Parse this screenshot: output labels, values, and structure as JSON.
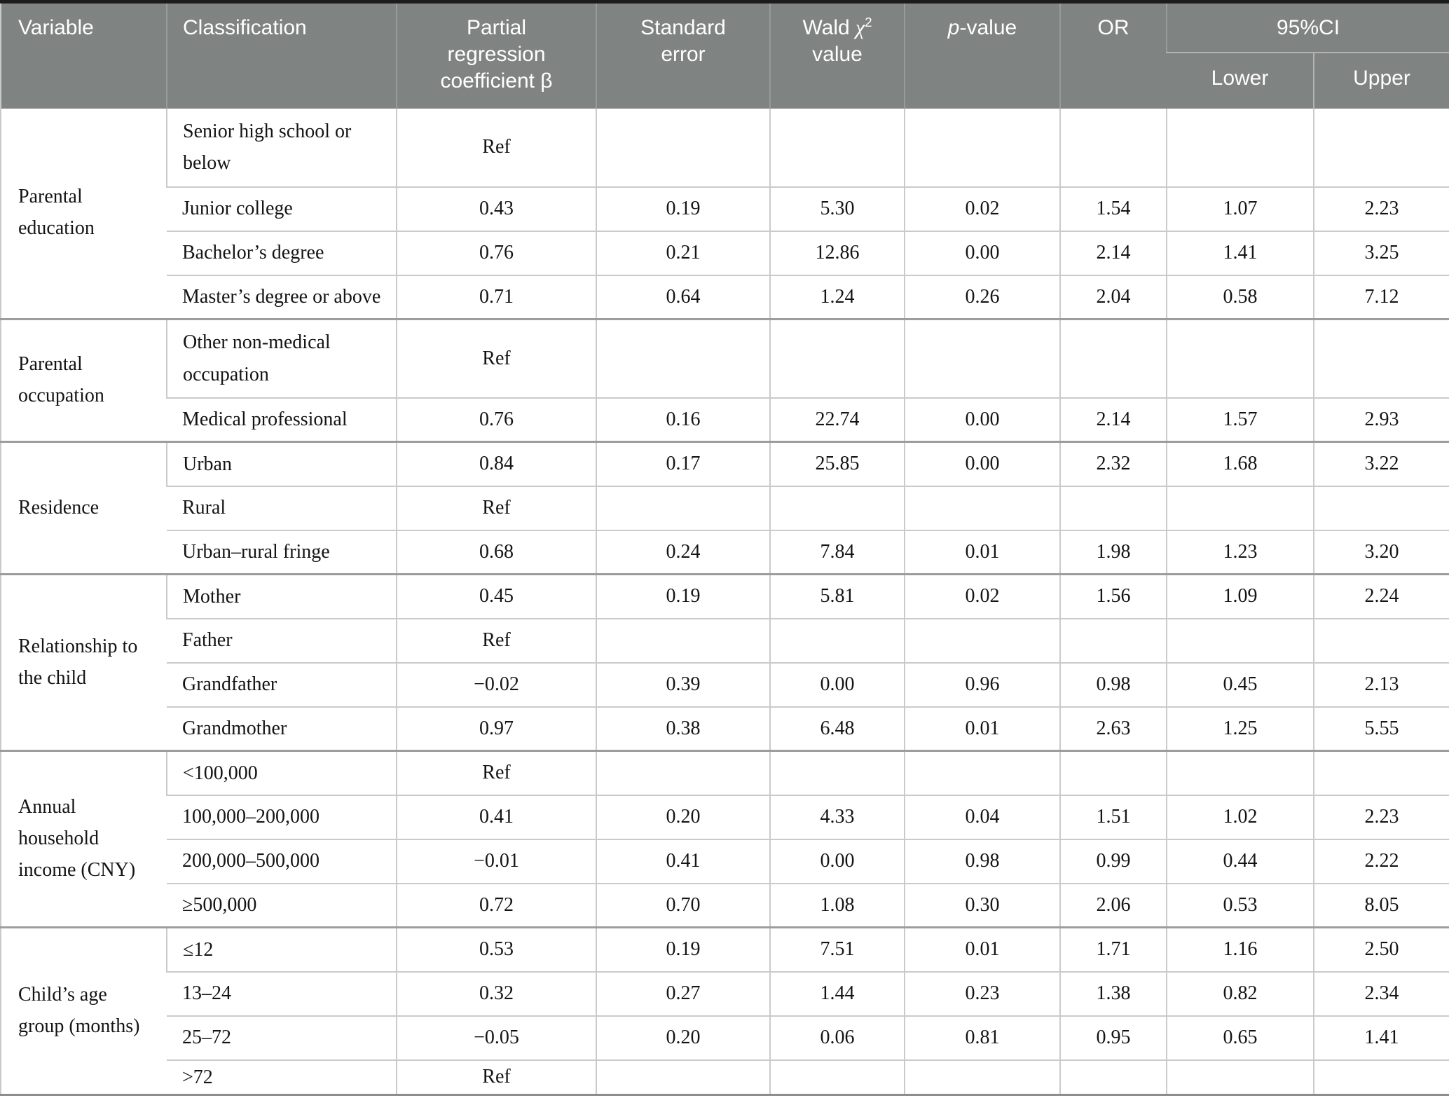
{
  "colors": {
    "header_bg": "#7f8382",
    "header_text": "#ffffff",
    "body_text": "#141414",
    "grid_line": "#c9cbca",
    "group_line": "#9b9e9d",
    "header_divider": "#989b9a",
    "ci_divider": "#b1b4b3",
    "top_border": "#1c1c1c",
    "bottom_border": "#8b8e8d"
  },
  "header": {
    "variable": "Variable",
    "classification": "Classification",
    "beta": "Partial regression coefficient β",
    "se": "Standard error",
    "wald_word": "Wald ",
    "wald_chi": "χ",
    "wald_sup": "2",
    "wald_rest": "value",
    "p_italic": "p",
    "p_rest": "-value",
    "or": "OR",
    "ci": "95%CI",
    "ci_lower": "Lower",
    "ci_upper": "Upper"
  },
  "table": {
    "groups": [
      {
        "variable": "Parental education",
        "rows": [
          {
            "classification": "Senior high school or below",
            "beta": "Ref",
            "tall": true
          },
          {
            "classification": "Junior college",
            "beta": "0.43",
            "se": "0.19",
            "wald": "5.30",
            "p": "0.02",
            "or": "1.54",
            "lower": "1.07",
            "upper": "2.23"
          },
          {
            "classification": "Bachelor’s degree",
            "beta": "0.76",
            "se": "0.21",
            "wald": "12.86",
            "p": "0.00",
            "or": "2.14",
            "lower": "1.41",
            "upper": "3.25"
          },
          {
            "classification": "Master’s degree or above",
            "beta": "0.71",
            "se": "0.64",
            "wald": "1.24",
            "p": "0.26",
            "or": "2.04",
            "lower": "0.58",
            "upper": "7.12"
          }
        ]
      },
      {
        "variable": "Parental occupation",
        "rows": [
          {
            "classification": "Other non-medical occupation",
            "beta": "Ref",
            "tall": true
          },
          {
            "classification": "Medical professional",
            "beta": "0.76",
            "se": "0.16",
            "wald": "22.74",
            "p": "0.00",
            "or": "2.14",
            "lower": "1.57",
            "upper": "2.93"
          }
        ]
      },
      {
        "variable": "Residence",
        "rows": [
          {
            "classification": "Urban",
            "beta": "0.84",
            "se": "0.17",
            "wald": "25.85",
            "p": "0.00",
            "or": "2.32",
            "lower": "1.68",
            "upper": "3.22"
          },
          {
            "classification": "Rural",
            "beta": "Ref"
          },
          {
            "classification": "Urban–rural fringe",
            "beta": "0.68",
            "se": "0.24",
            "wald": "7.84",
            "p": "0.01",
            "or": "1.98",
            "lower": "1.23",
            "upper": "3.20"
          }
        ]
      },
      {
        "variable": "Relationship to the child",
        "rows": [
          {
            "classification": "Mother",
            "beta": "0.45",
            "se": "0.19",
            "wald": "5.81",
            "p": "0.02",
            "or": "1.56",
            "lower": "1.09",
            "upper": "2.24"
          },
          {
            "classification": "Father",
            "beta": "Ref"
          },
          {
            "classification": "Grandfather",
            "beta": "−0.02",
            "se": "0.39",
            "wald": "0.00",
            "p": "0.96",
            "or": "0.98",
            "lower": "0.45",
            "upper": "2.13"
          },
          {
            "classification": "Grandmother",
            "beta": "0.97",
            "se": "0.38",
            "wald": "6.48",
            "p": "0.01",
            "or": "2.63",
            "lower": "1.25",
            "upper": "5.55"
          }
        ]
      },
      {
        "variable": "Annual household income (CNY)",
        "rows": [
          {
            "classification": "<100,000",
            "beta": "Ref"
          },
          {
            "classification": "100,000–200,000",
            "beta": "0.41",
            "se": "0.20",
            "wald": "4.33",
            "p": "0.04",
            "or": "1.51",
            "lower": "1.02",
            "upper": "2.23"
          },
          {
            "classification": "200,000–500,000",
            "beta": "−0.01",
            "se": "0.41",
            "wald": "0.00",
            "p": "0.98",
            "or": "0.99",
            "lower": "0.44",
            "upper": "2.22"
          },
          {
            "classification": "≥500,000",
            "beta": "0.72",
            "se": "0.70",
            "wald": "1.08",
            "p": "0.30",
            "or": "2.06",
            "lower": "0.53",
            "upper": "8.05"
          }
        ]
      },
      {
        "variable": "Child’s age group (months)",
        "rows": [
          {
            "classification": "≤12",
            "beta": "0.53",
            "se": "0.19",
            "wald": "7.51",
            "p": "0.01",
            "or": "1.71",
            "lower": "1.16",
            "upper": "2.50"
          },
          {
            "classification": "13–24",
            "beta": "0.32",
            "se": "0.27",
            "wald": "1.44",
            "p": "0.23",
            "or": "1.38",
            "lower": "0.82",
            "upper": "2.34"
          },
          {
            "classification": "25–72",
            "beta": "−0.05",
            "se": "0.20",
            "wald": "0.06",
            "p": "0.81",
            "or": "0.95",
            "lower": "0.65",
            "upper": "1.41"
          },
          {
            "classification": ">72",
            "beta": "Ref",
            "last": true
          }
        ]
      }
    ]
  }
}
